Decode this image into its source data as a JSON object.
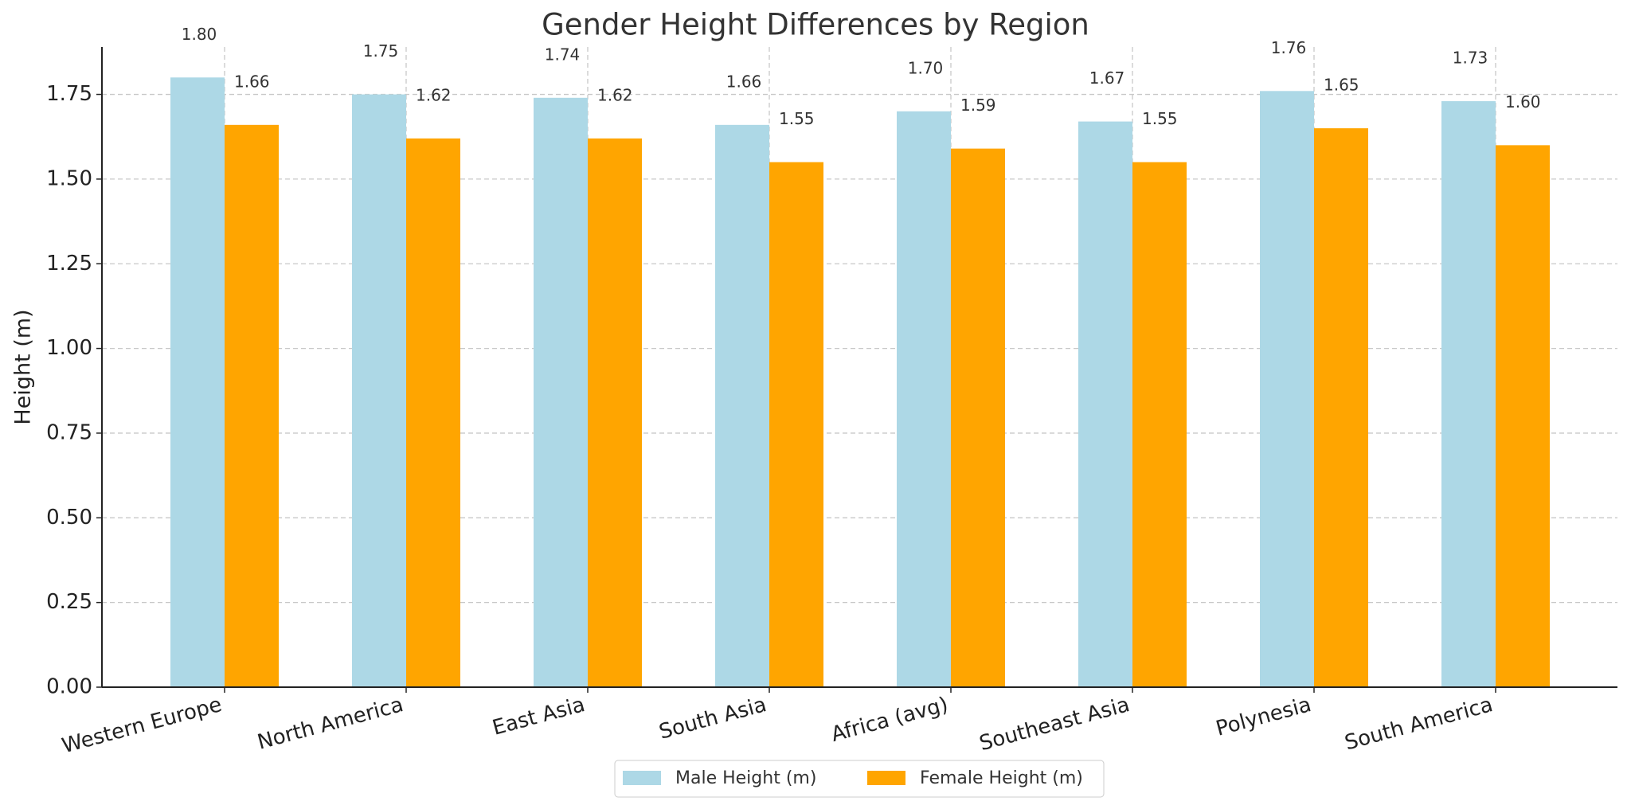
{
  "chart_data": {
    "type": "bar",
    "title": "Gender Height Differences by Region",
    "y_label": "Height (m)",
    "categories": [
      "Western Europe",
      "North America",
      "East Asia",
      "South Asia",
      "Africa (avg)",
      "Southeast Asia",
      "Polynesia",
      "South America"
    ],
    "series": [
      {
        "name": "Male Height (m)",
        "color": "#add8e6",
        "values": [
          1.8,
          1.75,
          1.74,
          1.66,
          1.7,
          1.67,
          1.76,
          1.73
        ],
        "value_labels": [
          "1.80",
          "1.75",
          "1.74",
          "1.66",
          "1.70",
          "1.67",
          "1.76",
          "1.73"
        ]
      },
      {
        "name": "Female Height (m)",
        "color": "#ffa500",
        "values": [
          1.66,
          1.62,
          1.62,
          1.55,
          1.59,
          1.55,
          1.65,
          1.6
        ],
        "value_labels": [
          "1.66",
          "1.62",
          "1.62",
          "1.55",
          "1.59",
          "1.55",
          "1.65",
          "1.60"
        ]
      }
    ],
    "ylim": [
      0,
      1.89
    ],
    "yticks": [
      {
        "value": 0,
        "label": "0.00"
      },
      {
        "value": 0.25,
        "label": "0.25"
      },
      {
        "value": 0.5,
        "label": "0.50"
      },
      {
        "value": 0.75,
        "label": "0.75"
      },
      {
        "value": 1,
        "label": "1.00"
      },
      {
        "value": 1.25,
        "label": "1.25"
      },
      {
        "value": 1.5,
        "label": "1.50"
      },
      {
        "value": 1.75,
        "label": "1.75"
      }
    ],
    "grid": true,
    "legend": "bottom"
  }
}
